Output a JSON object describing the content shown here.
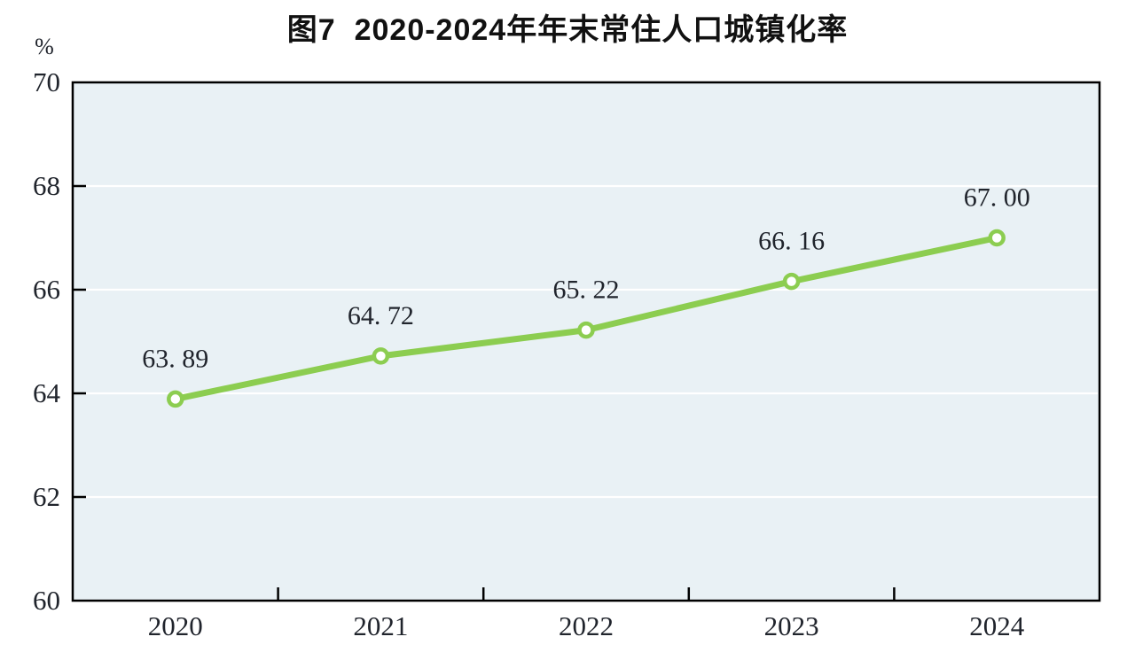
{
  "figure": {
    "title": "图7  2020-2024年年末常住人口城镇化率",
    "unit_label": "%"
  },
  "chart_data": {
    "type": "line",
    "title": "图7  2020-2024年年末常住人口城镇化率",
    "xlabel": "",
    "ylabel": "%",
    "categories": [
      "2020",
      "2021",
      "2022",
      "2023",
      "2024"
    ],
    "values": [
      63.89,
      64.72,
      65.22,
      66.16,
      67.0
    ],
    "data_labels": [
      "63. 89",
      "64. 72",
      "65. 22",
      "66. 16",
      "67. 00"
    ],
    "ylim": [
      60,
      70
    ],
    "yticks": [
      60,
      62,
      64,
      66,
      68,
      70
    ],
    "ytick_labels": [
      "60",
      "62",
      "64",
      "66",
      "68",
      "70"
    ],
    "grid_horizontal": true,
    "legend_position": "none",
    "marker": "circle-open",
    "styles": {
      "line_color": "#8ccd50",
      "marker_fill": "#ffffff",
      "marker_stroke": "#8ccd50",
      "plot_bg": "#e9f1f5",
      "gridline_color": "#ffffff",
      "axis_color": "#000000",
      "text_color": "#20242c",
      "title_color": "#111111",
      "page_bg": "#ffffff"
    }
  }
}
